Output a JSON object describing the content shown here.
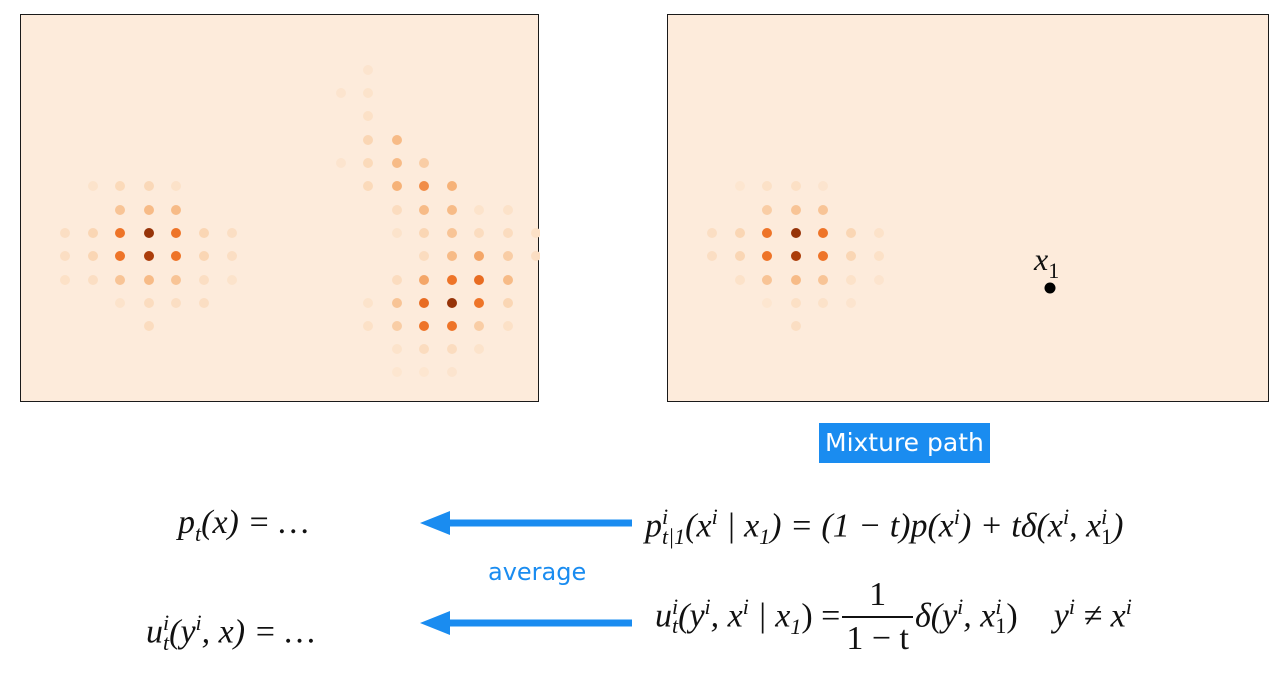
{
  "panels": {
    "left": {
      "dots": [
        [
          347,
          55,
          0.3
        ],
        [
          320,
          78,
          0.3
        ],
        [
          347,
          78,
          0.4
        ],
        [
          347,
          101,
          0.6
        ],
        [
          347,
          125,
          1.5
        ],
        [
          376,
          125,
          3
        ],
        [
          320,
          148,
          0.3
        ],
        [
          347,
          148,
          1.2
        ],
        [
          376,
          148,
          3
        ],
        [
          403,
          148,
          2
        ],
        [
          72,
          171,
          0.4
        ],
        [
          99,
          171,
          1.2
        ],
        [
          128,
          171,
          1.3
        ],
        [
          155,
          171,
          0.5
        ],
        [
          347,
          171,
          1.2
        ],
        [
          376,
          171,
          3.5
        ],
        [
          403,
          171,
          5
        ],
        [
          431,
          171,
          3.5
        ],
        [
          99,
          195,
          2.5
        ],
        [
          128,
          195,
          3
        ],
        [
          155,
          195,
          3
        ],
        [
          376,
          195,
          1
        ],
        [
          403,
          195,
          3
        ],
        [
          431,
          195,
          3
        ],
        [
          458,
          195,
          0.4
        ],
        [
          487,
          195,
          0.5
        ],
        [
          44,
          218,
          0.8
        ],
        [
          72,
          218,
          1.5
        ],
        [
          99,
          218,
          6
        ],
        [
          128,
          218,
          9.5
        ],
        [
          155,
          218,
          6
        ],
        [
          183,
          218,
          1.5
        ],
        [
          211,
          218,
          0.8
        ],
        [
          376,
          218,
          0.4
        ],
        [
          403,
          218,
          1.5
        ],
        [
          431,
          218,
          2.5
        ],
        [
          458,
          218,
          1
        ],
        [
          487,
          218,
          1
        ],
        [
          515,
          218,
          0.6
        ],
        [
          44,
          241,
          0.8
        ],
        [
          72,
          241,
          1.5
        ],
        [
          99,
          241,
          6
        ],
        [
          128,
          241,
          9
        ],
        [
          155,
          241,
          6
        ],
        [
          183,
          241,
          1.5
        ],
        [
          211,
          241,
          0.8
        ],
        [
          403,
          241,
          1
        ],
        [
          431,
          241,
          3
        ],
        [
          458,
          241,
          4
        ],
        [
          487,
          241,
          2
        ],
        [
          515,
          241,
          0.8
        ],
        [
          44,
          265,
          0.6
        ],
        [
          72,
          265,
          0.8
        ],
        [
          99,
          265,
          2.5
        ],
        [
          128,
          265,
          3
        ],
        [
          155,
          265,
          2.5
        ],
        [
          183,
          265,
          0.8
        ],
        [
          211,
          265,
          0.4
        ],
        [
          376,
          265,
          1
        ],
        [
          403,
          265,
          4
        ],
        [
          431,
          265,
          6
        ],
        [
          458,
          265,
          6.5
        ],
        [
          487,
          265,
          3
        ],
        [
          99,
          288,
          0.4
        ],
        [
          128,
          288,
          1
        ],
        [
          155,
          288,
          0.8
        ],
        [
          183,
          288,
          0.8
        ],
        [
          347,
          288,
          0.4
        ],
        [
          376,
          288,
          2.5
        ],
        [
          403,
          288,
          6.5
        ],
        [
          431,
          288,
          9.5
        ],
        [
          458,
          288,
          6
        ],
        [
          487,
          288,
          1.5
        ],
        [
          128,
          311,
          1
        ],
        [
          347,
          311,
          0.6
        ],
        [
          376,
          311,
          2
        ],
        [
          403,
          311,
          6
        ],
        [
          431,
          311,
          6
        ],
        [
          458,
          311,
          2
        ],
        [
          487,
          311,
          0.6
        ],
        [
          376,
          334,
          0.4
        ],
        [
          403,
          334,
          1
        ],
        [
          431,
          334,
          1
        ],
        [
          458,
          334,
          0.4
        ],
        [
          376,
          357,
          0.2
        ],
        [
          403,
          357,
          0.2
        ],
        [
          431,
          357,
          0.3
        ]
      ]
    },
    "right": {
      "dots": [
        [
          72,
          171,
          0.2
        ],
        [
          99,
          171,
          0.6
        ],
        [
          128,
          171,
          0.7
        ],
        [
          155,
          171,
          0.3
        ],
        [
          99,
          195,
          2
        ],
        [
          128,
          195,
          2.5
        ],
        [
          155,
          195,
          2.5
        ],
        [
          44,
          218,
          0.8
        ],
        [
          72,
          218,
          1.5
        ],
        [
          99,
          218,
          6
        ],
        [
          128,
          218,
          9.5
        ],
        [
          155,
          218,
          6
        ],
        [
          183,
          218,
          1.5
        ],
        [
          211,
          218,
          0.5
        ],
        [
          44,
          241,
          0.8
        ],
        [
          72,
          241,
          1.5
        ],
        [
          99,
          241,
          6
        ],
        [
          128,
          241,
          9
        ],
        [
          155,
          241,
          6
        ],
        [
          183,
          241,
          1.5
        ],
        [
          211,
          241,
          0.6
        ],
        [
          72,
          265,
          0.5
        ],
        [
          99,
          265,
          2.5
        ],
        [
          128,
          265,
          3
        ],
        [
          155,
          265,
          2.5
        ],
        [
          183,
          265,
          0.5
        ],
        [
          211,
          265,
          0.3
        ],
        [
          99,
          288,
          0.2
        ],
        [
          128,
          288,
          0.7
        ],
        [
          155,
          288,
          0.5
        ],
        [
          183,
          288,
          0.3
        ],
        [
          128,
          311,
          0.8
        ]
      ],
      "target_label": "x",
      "target_label_sub": "1"
    }
  },
  "badge": "Mixture path",
  "average_label": "average",
  "equations": {
    "p_left": {
      "a": "p",
      "sub": "t",
      "b": "(x) = …"
    },
    "p_right": {
      "a": "p",
      "sup": "i",
      "sub": "t|1",
      "b": "(x",
      "sup2": "i",
      "c": " | x",
      "sub2": "1",
      "d": ") = (1 − t)p(x",
      "sup3": "i",
      "e": ") + tδ(x",
      "sup4": "i",
      "f": ", x",
      "sup5": "i",
      "sub5": "1",
      "g": ")"
    },
    "u_left": {
      "a": "u",
      "sup": "i",
      "sub": "t",
      "b": "(y",
      "sup2": "i",
      "c": ", x) = …"
    },
    "u_right": {
      "a": "u",
      "sup": "i",
      "sub": "t",
      "b": "(y",
      "sup2": "i",
      "c": ", x",
      "sup3": "i",
      "d": " | x",
      "sub3": "1",
      "e": ") =",
      "num": "1",
      "den": "1 − t",
      "f": "δ(y",
      "sup4": "i",
      "g": ", x",
      "sup5": "i",
      "sub5": "1",
      "h": ")",
      "cond_a": "y",
      "cond_sup": "i",
      "cond_b": " ≠ x",
      "cond_sup2": "i"
    }
  },
  "colors": {
    "panel_bg": "#fdebdb",
    "accent": "#1a8cf0"
  }
}
